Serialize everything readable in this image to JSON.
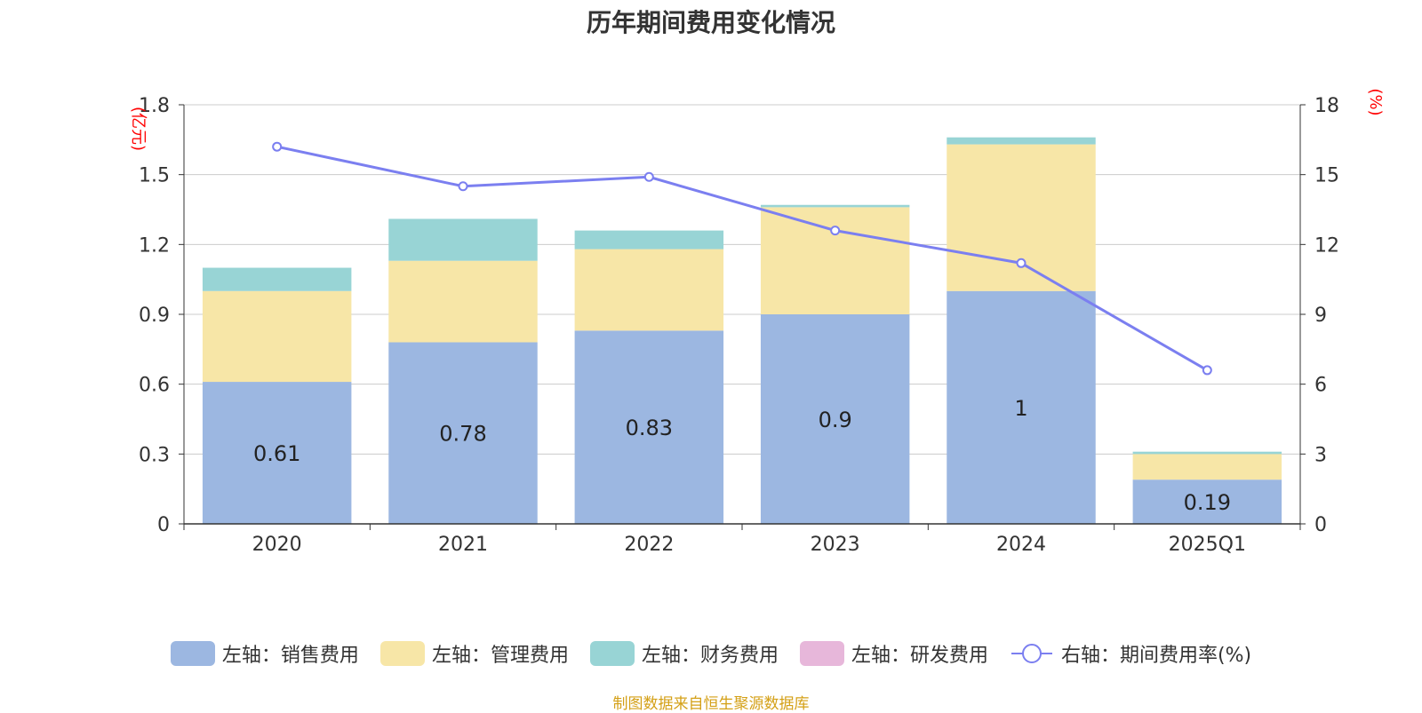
{
  "title": "历年期间费用变化情况",
  "source": "制图数据来自恒生聚源数据库",
  "colors": {
    "sales": "#9cb7e1",
    "admin": "#f7e6a7",
    "finance": "#98d4d5",
    "rd": "#e7b7da",
    "rate": "#7b7ff0",
    "unit_text": "#ff0000",
    "axis_text": "#333333",
    "grid": "#cccccc"
  },
  "legend": {
    "sales": "左轴：销售费用",
    "admin": "左轴：管理费用",
    "finance": "左轴：财务费用",
    "rd": "左轴：研发费用",
    "rate": "右轴：期间费用率(%)"
  },
  "chart_data": {
    "type": "bar",
    "stacked": true,
    "title": "历年期间费用变化情况",
    "categories": [
      "2020",
      "2021",
      "2022",
      "2023",
      "2024",
      "2025Q1"
    ],
    "left_axis": {
      "unit": "(亿元)",
      "ylim": [
        0,
        1.8
      ],
      "ticks": [
        "0",
        "0.3",
        "0.6",
        "0.9",
        "1.2",
        "1.5",
        "1.8"
      ]
    },
    "right_axis": {
      "unit": "(%)",
      "ylim": [
        0,
        18
      ],
      "ticks": [
        "0",
        "3",
        "6",
        "9",
        "12",
        "15",
        "18"
      ]
    },
    "series": [
      {
        "name": "左轴：销售费用",
        "key": "sales",
        "values": [
          0.61,
          0.78,
          0.83,
          0.9,
          1.0,
          0.19
        ],
        "labels": [
          "0.61",
          "0.78",
          "0.83",
          "0.9",
          "1",
          "0.19"
        ]
      },
      {
        "name": "左轴：管理费用",
        "key": "admin",
        "values": [
          0.39,
          0.35,
          0.35,
          0.46,
          0.63,
          0.11
        ]
      },
      {
        "name": "左轴：财务费用",
        "key": "finance",
        "values": [
          0.1,
          0.18,
          0.08,
          0.01,
          0.03,
          0.01
        ]
      },
      {
        "name": "左轴：研发费用",
        "key": "rd",
        "values": [
          0,
          0,
          0,
          0,
          0,
          0
        ]
      }
    ],
    "line_series": {
      "name": "右轴：期间费用率(%)",
      "axis": "right",
      "values": [
        16.2,
        14.5,
        14.9,
        12.6,
        11.2,
        6.6
      ]
    },
    "grid": true,
    "legend_position": "bottom"
  }
}
